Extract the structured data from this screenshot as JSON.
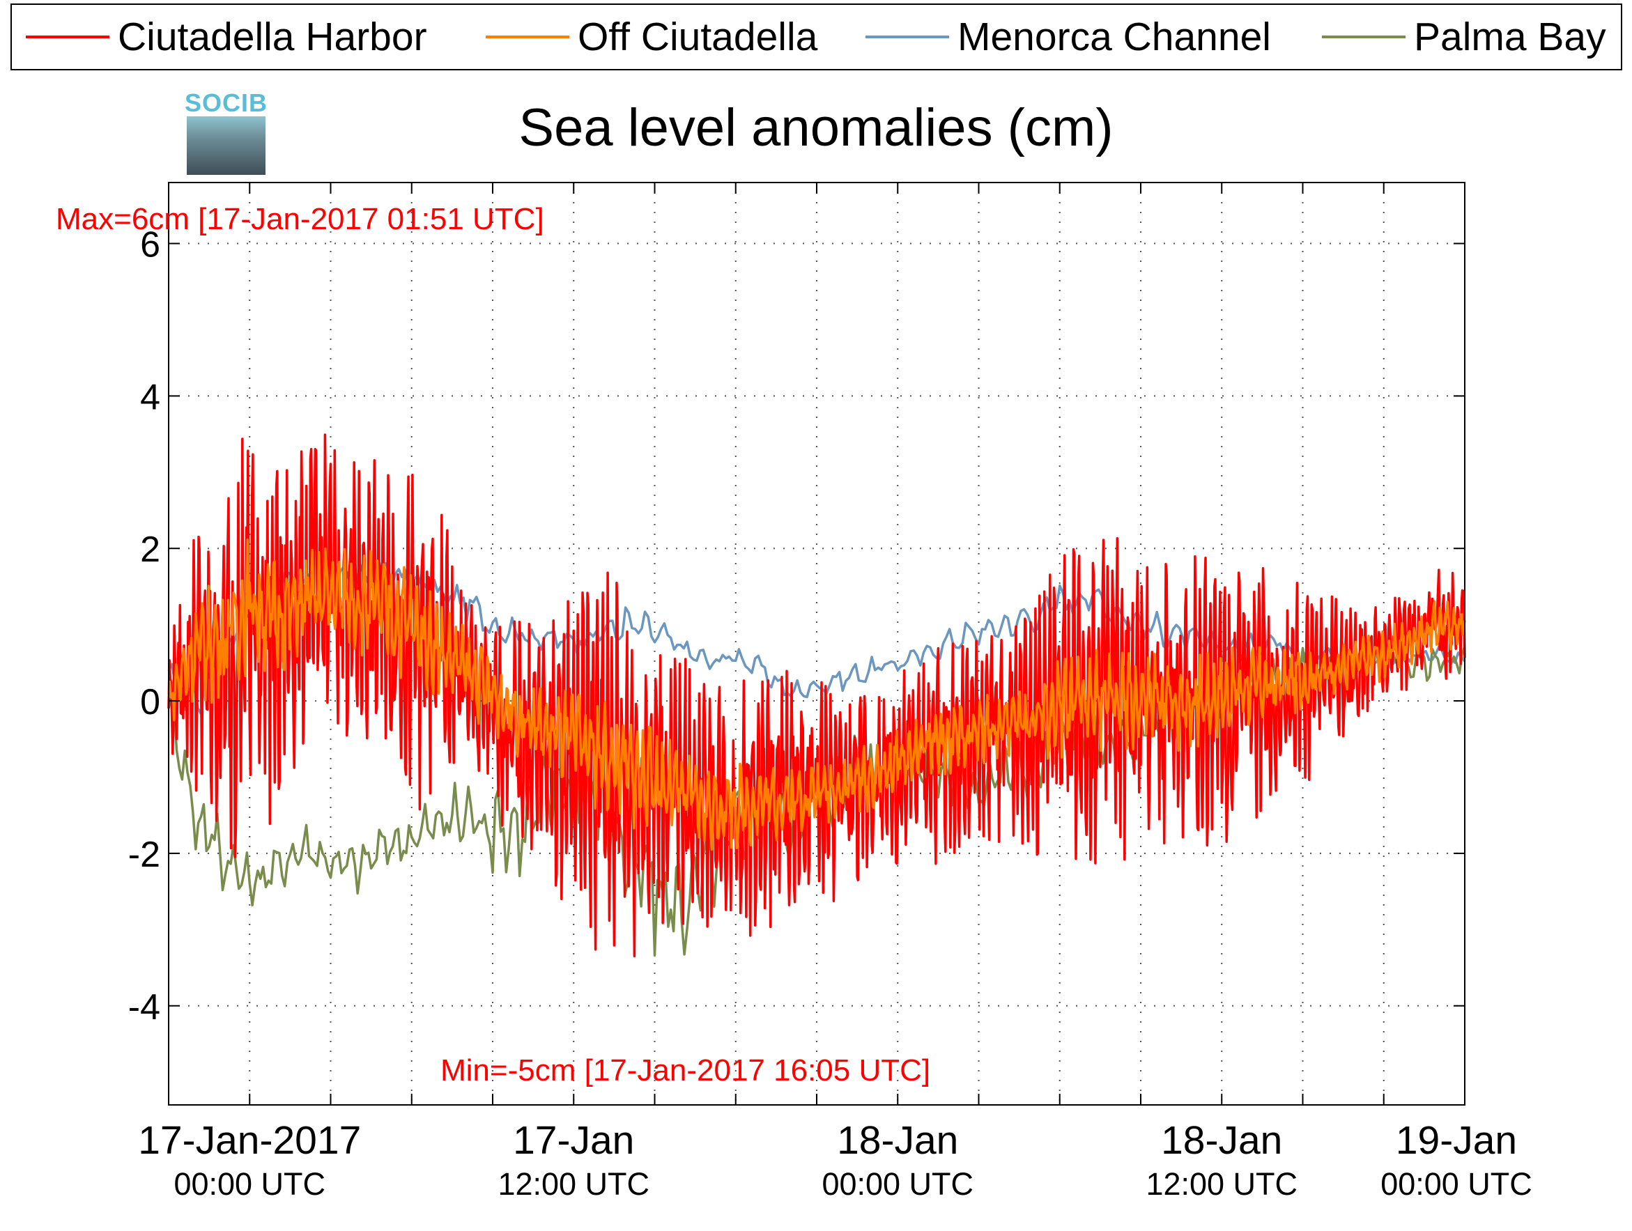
{
  "legend": [
    {
      "label": "Ciutadella Harbor",
      "color": "#ff0000"
    },
    {
      "label": "Off Ciutadella",
      "color": "#ff8000"
    },
    {
      "label": "Menorca Channel",
      "color": "#6a96c0"
    },
    {
      "label": "Palma Bay",
      "color": "#7a8c4c"
    }
  ],
  "logo": {
    "text": "SOCIB"
  },
  "title": "Sea level anomalies (cm)",
  "annotations": {
    "max": "Max=6cm [17-Jan-2017 01:51 UTC]",
    "min": "Min=-5cm [17-Jan-2017 16:05 UTC]"
  },
  "chart_data": {
    "type": "line",
    "title": "Sea level anomalies (cm)",
    "x_unit": "hours after 16-Jan-2017 21:00 UTC",
    "xlim": [
      0,
      48
    ],
    "ylim": [
      -5.3,
      6.8
    ],
    "y_ticks": [
      -4,
      -2,
      0,
      2,
      4,
      6
    ],
    "y_tick_labels": [
      "-4",
      "-2",
      "0",
      "2",
      "4",
      "6"
    ],
    "x_ticks": [
      3,
      6,
      9,
      12,
      15,
      18,
      21,
      24,
      27,
      30,
      33,
      36,
      39,
      42,
      45
    ],
    "x_tick_labels": [
      {
        "at": 3,
        "line1": "17-Jan-2017",
        "line2": "00:00 UTC"
      },
      {
        "at": 15,
        "line1": "17-Jan",
        "line2": "12:00 UTC"
      },
      {
        "at": 27,
        "line1": "18-Jan",
        "line2": "00:00 UTC"
      },
      {
        "at": 39,
        "line1": "18-Jan",
        "line2": "12:00 UTC"
      },
      {
        "at": 48,
        "line1": "19-Jan",
        "line2": "00:00 UTC"
      }
    ],
    "grid": true,
    "series": [
      {
        "name": "Ciutadella Harbor",
        "color": "#ff0000",
        "x": [
          0,
          1,
          2,
          3,
          4,
          5,
          6,
          7,
          8,
          9,
          10,
          11,
          12,
          13,
          14,
          15,
          16,
          17,
          18,
          19,
          20,
          21,
          22,
          23,
          24,
          25,
          26,
          27,
          28,
          29,
          30,
          31,
          32,
          33,
          34,
          35,
          36,
          37,
          38,
          39,
          40,
          41,
          42,
          43,
          44,
          45,
          46,
          47,
          48
        ],
        "mean": [
          0.0,
          0.6,
          0.3,
          1.2,
          0.8,
          1.4,
          1.5,
          1.3,
          1.2,
          0.8,
          0.6,
          0.2,
          -0.2,
          -0.5,
          -0.6,
          -0.7,
          -0.8,
          -0.9,
          -1.0,
          -1.2,
          -1.3,
          -1.4,
          -1.3,
          -1.3,
          -1.2,
          -1.2,
          -1.1,
          -1.0,
          -0.8,
          -0.7,
          -0.5,
          -0.4,
          -0.2,
          -0.1,
          0.0,
          0.0,
          -0.1,
          0.0,
          0.0,
          0.0,
          0.1,
          0.1,
          0.2,
          0.4,
          0.5,
          0.6,
          0.8,
          1.0,
          1.0
        ],
        "amp": [
          0.6,
          1.6,
          2.4,
          2.6,
          2.2,
          1.8,
          1.8,
          1.6,
          1.8,
          2.0,
          1.8,
          1.3,
          1.1,
          1.4,
          1.6,
          1.9,
          2.3,
          2.4,
          2.0,
          1.6,
          1.5,
          1.5,
          1.6,
          1.6,
          1.4,
          1.2,
          1.2,
          1.2,
          1.3,
          1.3,
          1.2,
          1.3,
          1.6,
          1.9,
          2.0,
          2.0,
          1.9,
          1.8,
          1.8,
          1.7,
          1.6,
          1.4,
          1.2,
          1.0,
          0.8,
          0.6,
          0.6,
          0.7,
          0.6
        ]
      },
      {
        "name": "Off Ciutadella",
        "color": "#ff8000",
        "x": [
          0,
          1,
          2,
          3,
          4,
          5,
          6,
          7,
          8,
          9,
          10,
          11,
          12,
          13,
          14,
          15,
          16,
          17,
          18,
          19,
          20,
          21,
          22,
          23,
          24,
          25,
          26,
          27,
          28,
          29,
          30,
          31,
          32,
          33,
          34,
          35,
          36,
          37,
          38,
          39,
          40,
          41,
          42,
          43,
          44,
          45,
          46,
          47,
          48
        ],
        "mean": [
          0.0,
          0.7,
          0.8,
          1.3,
          1.1,
          1.3,
          1.4,
          1.3,
          1.2,
          1.0,
          0.7,
          0.4,
          0.1,
          -0.2,
          -0.4,
          -0.5,
          -0.7,
          -0.9,
          -1.0,
          -1.2,
          -1.4,
          -1.4,
          -1.3,
          -1.3,
          -1.2,
          -1.1,
          -1.0,
          -0.8,
          -0.6,
          -0.5,
          -0.4,
          -0.3,
          -0.2,
          -0.1,
          0.0,
          0.0,
          0.0,
          0.0,
          0.0,
          0.1,
          0.2,
          0.2,
          0.3,
          0.4,
          0.5,
          0.6,
          0.8,
          1.0,
          1.0
        ],
        "amp": [
          0.3,
          0.6,
          0.8,
          0.8,
          0.7,
          0.6,
          0.6,
          0.6,
          0.7,
          0.7,
          0.6,
          0.5,
          0.5,
          0.5,
          0.5,
          0.6,
          0.7,
          0.7,
          0.6,
          0.5,
          0.5,
          0.5,
          0.5,
          0.5,
          0.4,
          0.4,
          0.4,
          0.4,
          0.4,
          0.4,
          0.4,
          0.4,
          0.5,
          0.6,
          0.6,
          0.6,
          0.6,
          0.6,
          0.6,
          0.5,
          0.5,
          0.4,
          0.4,
          0.3,
          0.3,
          0.3,
          0.3,
          0.3,
          0.3
        ]
      },
      {
        "name": "Menorca Channel",
        "color": "#6a96c0",
        "x": [
          0,
          1,
          2,
          3,
          4,
          5,
          6,
          7,
          8,
          9,
          10,
          11,
          12,
          13,
          14,
          15,
          16,
          17,
          18,
          19,
          20,
          21,
          22,
          23,
          24,
          25,
          26,
          27,
          28,
          29,
          30,
          31,
          32,
          33,
          34,
          35,
          36,
          37,
          38,
          39,
          40,
          41,
          42,
          43,
          44,
          45,
          46,
          47,
          48
        ],
        "mean": [
          0.3,
          0.0,
          0.6,
          1.1,
          1.6,
          1.5,
          1.5,
          1.6,
          1.7,
          1.6,
          1.4,
          1.3,
          1.0,
          0.9,
          0.8,
          0.8,
          0.9,
          1.0,
          0.9,
          0.7,
          0.5,
          0.6,
          0.4,
          0.1,
          0.2,
          0.3,
          0.4,
          0.5,
          0.6,
          0.8,
          0.9,
          1.0,
          1.1,
          1.3,
          1.4,
          1.2,
          1.0,
          0.9,
          0.8,
          0.7,
          0.7,
          0.8,
          0.6,
          0.6,
          0.5,
          0.6,
          0.6,
          0.6,
          0.5
        ],
        "amp": [
          0.2,
          0.3,
          0.2,
          0.2,
          0.2,
          0.2,
          0.2,
          0.2,
          0.2,
          0.2,
          0.2,
          0.2,
          0.2,
          0.2,
          0.2,
          0.2,
          0.2,
          0.25,
          0.2,
          0.15,
          0.15,
          0.15,
          0.15,
          0.15,
          0.15,
          0.15,
          0.15,
          0.15,
          0.15,
          0.15,
          0.2,
          0.2,
          0.25,
          0.25,
          0.25,
          0.2,
          0.2,
          0.2,
          0.15,
          0.15,
          0.15,
          0.15,
          0.15,
          0.1,
          0.1,
          0.1,
          0.1,
          0.1,
          0.1
        ]
      },
      {
        "name": "Palma Bay",
        "color": "#7a8c4c",
        "x": [
          0,
          1,
          2,
          3,
          4,
          5,
          6,
          7,
          8,
          9,
          10,
          11,
          12,
          13,
          14,
          15,
          16,
          17,
          18,
          19,
          20,
          21,
          22,
          23,
          24,
          25,
          26,
          27,
          28,
          29,
          30,
          31,
          32,
          33,
          34,
          35,
          36,
          37,
          38,
          39,
          40,
          41,
          42,
          43,
          44,
          45,
          46,
          47,
          48
        ],
        "mean": [
          0.0,
          -1.5,
          -2.0,
          -2.4,
          -2.2,
          -1.9,
          -2.1,
          -2.2,
          -1.9,
          -1.8,
          -1.6,
          -1.5,
          -1.6,
          -1.7,
          -1.3,
          -0.9,
          -1.3,
          -2.0,
          -2.5,
          -2.7,
          -2.2,
          -1.6,
          -1.4,
          -1.6,
          -1.3,
          -1.0,
          -0.9,
          -0.8,
          -0.9,
          -1.0,
          -1.1,
          -0.9,
          -0.8,
          -0.6,
          -0.5,
          -0.6,
          -0.4,
          -0.2,
          -0.1,
          0.0,
          0.2,
          0.3,
          0.4,
          0.4,
          0.5,
          0.5,
          0.5,
          0.5,
          0.5
        ],
        "amp": [
          0.2,
          0.5,
          0.5,
          0.3,
          0.3,
          0.3,
          0.3,
          0.3,
          0.3,
          0.3,
          0.4,
          0.5,
          0.6,
          0.6,
          0.6,
          0.6,
          0.7,
          0.8,
          0.8,
          0.7,
          0.6,
          0.5,
          0.5,
          0.5,
          0.5,
          0.5,
          0.4,
          0.4,
          0.4,
          0.4,
          0.4,
          0.4,
          0.4,
          0.4,
          0.4,
          0.4,
          0.4,
          0.4,
          0.4,
          0.35,
          0.35,
          0.3,
          0.3,
          0.25,
          0.25,
          0.2,
          0.2,
          0.2,
          0.2
        ]
      }
    ]
  }
}
